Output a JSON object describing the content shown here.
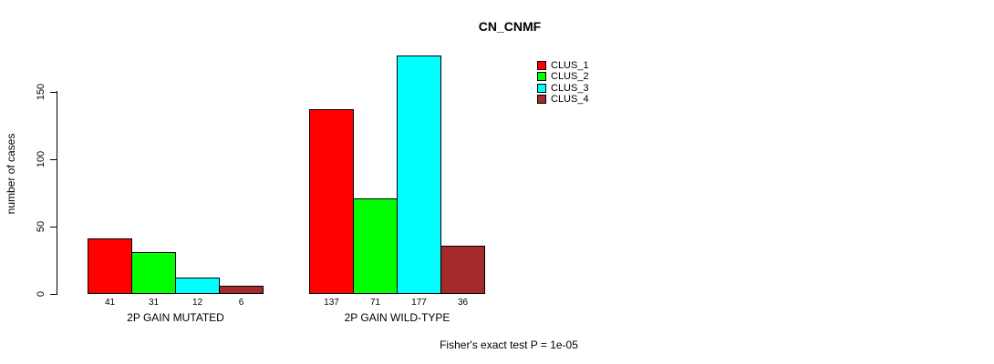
{
  "title": "CN_CNMF",
  "footer": "Fisher's exact test P = 1e-05",
  "y_axis": {
    "label": "number of cases",
    "ticks": [
      0,
      50,
      100,
      150
    ]
  },
  "legend": {
    "items": [
      {
        "label": "CLUS_1",
        "color": "#FF0000"
      },
      {
        "label": "CLUS_2",
        "color": "#00FF00"
      },
      {
        "label": "CLUS_3",
        "color": "#00FFFF"
      },
      {
        "label": "CLUS_4",
        "color": "#A52A2A"
      }
    ]
  },
  "chart_data": {
    "type": "bar",
    "title": "CN_CNMF",
    "xlabel": "",
    "ylabel": "number of cases",
    "ylim": [
      0,
      177
    ],
    "yticks": [
      0,
      50,
      100,
      150
    ],
    "grid": false,
    "legend_position": "top-right",
    "categories": [
      "2P GAIN MUTATED",
      "2P GAIN WILD-TYPE"
    ],
    "series": [
      {
        "name": "CLUS_1",
        "color": "#FF0000",
        "values": [
          41,
          137
        ]
      },
      {
        "name": "CLUS_2",
        "color": "#00FF00",
        "values": [
          31,
          71
        ]
      },
      {
        "name": "CLUS_3",
        "color": "#00FFFF",
        "values": [
          12,
          177
        ]
      },
      {
        "name": "CLUS_4",
        "color": "#A52A2A",
        "values": [
          6,
          36
        ]
      }
    ],
    "bar_value_labels": {
      "2P GAIN MUTATED": [
        41,
        31,
        12,
        6
      ],
      "2P GAIN WILD-TYPE": [
        137,
        71,
        177,
        36
      ]
    },
    "annotation": "Fisher's exact test P = 1e-05"
  }
}
